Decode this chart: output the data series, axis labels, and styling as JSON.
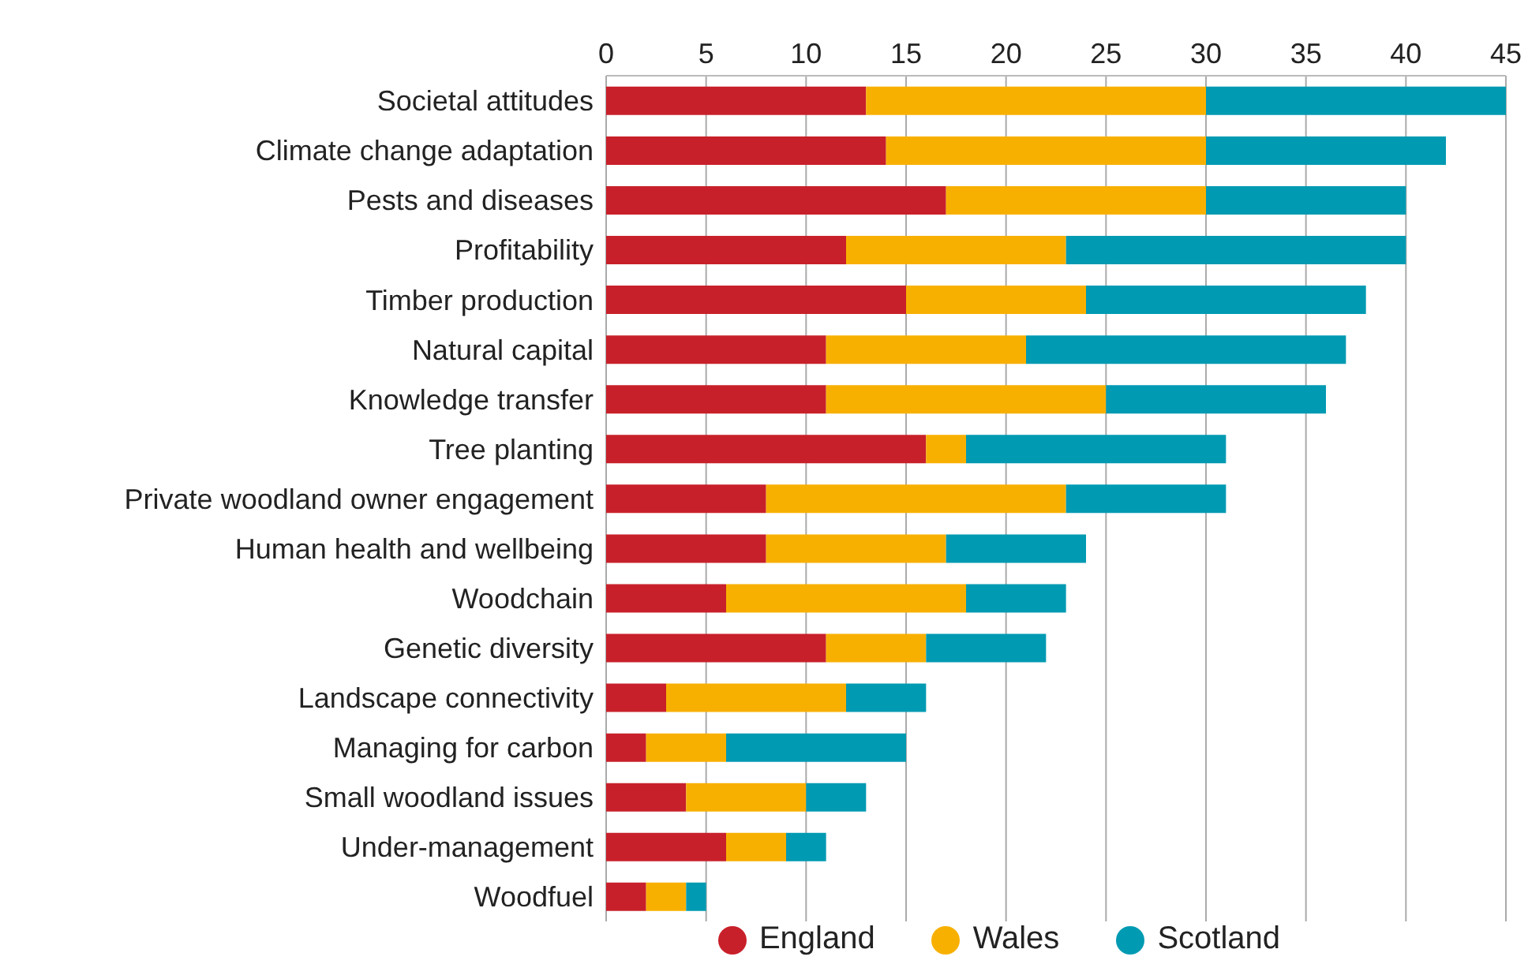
{
  "chart_data": {
    "type": "bar",
    "orientation": "horizontal",
    "stacked": true,
    "categories": [
      "Societal attitudes",
      "Climate change adaptation",
      "Pests and diseases",
      "Profitability",
      "Timber production",
      "Natural capital",
      "Knowledge transfer",
      "Tree planting",
      "Private woodland owner engagement",
      "Human health and wellbeing",
      "Woodchain",
      "Genetic diversity",
      "Landscape connectivity",
      "Managing for carbon",
      "Small woodland issues",
      "Under-management",
      "Woodfuel"
    ],
    "series": [
      {
        "name": "England",
        "color": "#c8202a",
        "values": [
          13,
          14,
          17,
          12,
          15,
          11,
          11,
          16,
          8,
          8,
          6,
          11,
          3,
          2,
          4,
          6,
          2
        ]
      },
      {
        "name": "Wales",
        "color": "#f8b000",
        "values": [
          17,
          16,
          13,
          11,
          9,
          10,
          14,
          2,
          15,
          9,
          12,
          5,
          9,
          4,
          6,
          3,
          2
        ]
      },
      {
        "name": "Scotland",
        "color": "#009ab2",
        "values": [
          15,
          12,
          10,
          17,
          14,
          16,
          11,
          13,
          8,
          7,
          5,
          6,
          4,
          9,
          3,
          2,
          1
        ]
      }
    ],
    "xlim": [
      0,
      45
    ],
    "xticks": [
      0,
      5,
      10,
      15,
      20,
      25,
      30,
      35,
      40,
      45
    ],
    "grid": "x",
    "legend": "bottom"
  }
}
